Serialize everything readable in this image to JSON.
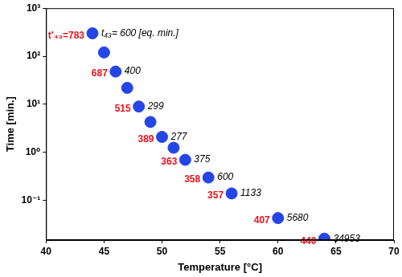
{
  "chart_data": {
    "type": "scatter",
    "x_label": "Temperature [°C]",
    "y_label": "Time [min.]",
    "x": [
      44,
      45,
      46,
      47,
      48,
      49,
      50,
      51,
      52,
      54,
      56,
      60,
      64
    ],
    "values": [
      300,
      120,
      48,
      22,
      9,
      4.3,
      2.1,
      1.25,
      0.7,
      0.3,
      0.14,
      0.043,
      0.016
    ],
    "color": "#2446e6",
    "marker": "circle",
    "log": "y",
    "grid": false,
    "xlim": [
      40,
      70
    ],
    "xticks": [
      40,
      45,
      50,
      55,
      60,
      65,
      70
    ],
    "ylim": [
      0.015,
      1000
    ],
    "yticks": [
      {
        "value": 0.1,
        "label": "10⁻¹"
      },
      {
        "value": 1,
        "label": "10⁰"
      },
      {
        "value": 10,
        "label": "10¹"
      },
      {
        "value": 100,
        "label": "10²"
      },
      {
        "value": 1000,
        "label": "10³"
      }
    ],
    "annotations": [
      {
        "x": 44,
        "y": 300,
        "text": "t'₄₃=783",
        "color": "#e8141c",
        "font_style": "bold"
      },
      {
        "x": 46,
        "y": 48,
        "text": "687",
        "color": "#e8141c",
        "font_style": "bold"
      },
      {
        "x": 48,
        "y": 9,
        "text": "515",
        "color": "#e8141c",
        "font_style": "bold"
      },
      {
        "x": 50,
        "y": 2.1,
        "text": "389",
        "color": "#e8141c",
        "font_style": "bold"
      },
      {
        "x": 52,
        "y": 0.7,
        "text": "363",
        "color": "#e8141c",
        "font_style": "bold"
      },
      {
        "x": 54,
        "y": 0.3,
        "text": "358",
        "color": "#e8141c",
        "font_style": "bold"
      },
      {
        "x": 56,
        "y": 0.14,
        "text": "357",
        "color": "#e8141c",
        "font_style": "bold"
      },
      {
        "x": 60,
        "y": 0.043,
        "text": "407",
        "color": "#e8141c",
        "font_style": "bold"
      },
      {
        "x": 64,
        "y": 0.016,
        "text": "440",
        "color": "#e8141c",
        "font_style": "bold"
      },
      {
        "x": 44,
        "y": 300,
        "text": "t₄₃= 600 [eq. min.]",
        "color": "#000000",
        "font_style": "italic"
      },
      {
        "x": 46,
        "y": 48,
        "text": "400",
        "color": "#000000",
        "font_style": "italic"
      },
      {
        "x": 48,
        "y": 9,
        "text": "299",
        "color": "#000000",
        "font_style": "italic"
      },
      {
        "x": 50,
        "y": 2.1,
        "text": "277",
        "color": "#000000",
        "font_style": "italic"
      },
      {
        "x": 52,
        "y": 0.7,
        "text": "375",
        "color": "#000000",
        "font_style": "italic"
      },
      {
        "x": 54,
        "y": 0.3,
        "text": "600",
        "color": "#000000",
        "font_style": "italic"
      },
      {
        "x": 56,
        "y": 0.14,
        "text": "1133",
        "color": "#000000",
        "font_style": "italic"
      },
      {
        "x": 60,
        "y": 0.043,
        "text": "5680",
        "color": "#000000",
        "font_style": "italic"
      },
      {
        "x": 64,
        "y": 0.016,
        "text": "34953",
        "color": "#000000",
        "font_style": "italic"
      }
    ]
  }
}
